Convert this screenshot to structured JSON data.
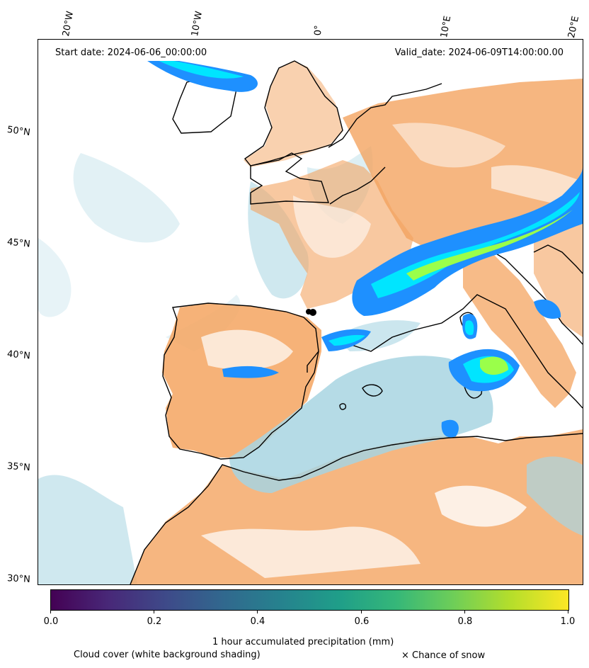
{
  "map": {
    "start_date_label": "Start date: 2024-06-06_00:00:00",
    "valid_date_label": "Valid_date: 2024-06-09T14:00:00.00",
    "longitude_labels": [
      "20°W",
      "10°W",
      "0°",
      "10°E",
      "20°E"
    ],
    "latitude_labels": [
      "50°N",
      "45°N",
      "40°N",
      "35°N",
      "30°N"
    ],
    "colors": {
      "cloud_cover": "#a8d5e2",
      "land_dry": "#f4a460",
      "precip_low": "#1e90ff",
      "precip_mid": "#00e5ff",
      "precip_high": "#9aff4a",
      "coastline": "#000000"
    }
  },
  "colorbar": {
    "ticks": [
      "0.0",
      "0.2",
      "0.4",
      "0.6",
      "0.8",
      "1.0"
    ],
    "label": "1 hour accumulated precipitation (mm)",
    "colormap": "viridis"
  },
  "legend": {
    "cloud_note": "Cloud cover (white background shading)",
    "snow_note": "× Chance of snow"
  }
}
